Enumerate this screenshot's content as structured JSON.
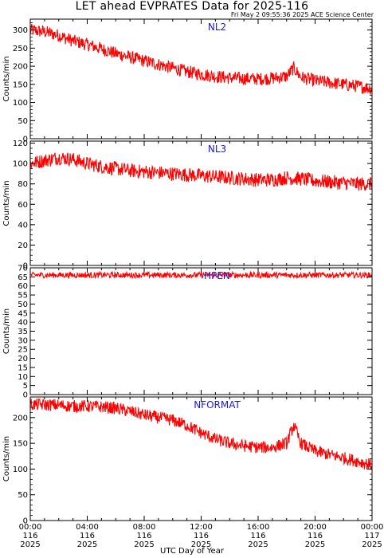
{
  "title": "LET ahead EVPRATES Data for 2025-116",
  "timestamp": "Fri May  2 09:55:36 2025 ACE Science Center",
  "xlabel": "UTC Day of Year",
  "chart_data": [
    {
      "type": "line",
      "name": "NL2",
      "ylabel": "Counts/min",
      "ylim": [
        0,
        330
      ],
      "yticks": [
        0,
        50,
        100,
        150,
        200,
        250,
        300
      ],
      "color": "#ff0000",
      "x_hours": [
        0,
        1,
        2,
        3,
        4,
        5,
        6,
        7,
        8,
        9,
        10,
        11,
        12,
        13,
        14,
        15,
        16,
        17,
        18,
        18.5,
        19,
        20,
        21,
        22,
        23,
        24
      ],
      "values": [
        300,
        295,
        285,
        270,
        260,
        248,
        235,
        225,
        215,
        205,
        195,
        185,
        178,
        172,
        168,
        166,
        165,
        167,
        172,
        195,
        170,
        160,
        155,
        150,
        145,
        138
      ],
      "noise": 18
    },
    {
      "type": "line",
      "name": "NL3",
      "ylabel": "Counts/min",
      "ylim": [
        0,
        122
      ],
      "yticks": [
        0,
        20,
        40,
        60,
        80,
        100,
        120
      ],
      "color": "#ff0000",
      "x_hours": [
        0,
        1,
        2,
        3,
        4,
        5,
        6,
        7,
        8,
        9,
        10,
        11,
        12,
        13,
        14,
        15,
        16,
        17,
        18,
        19,
        20,
        21,
        22,
        23,
        24
      ],
      "values": [
        100,
        103,
        106,
        104,
        100,
        97,
        95,
        93,
        92,
        91,
        90,
        89,
        88,
        87,
        86,
        85,
        84,
        84,
        86,
        85,
        83,
        82,
        81,
        80,
        80
      ],
      "noise": 7
    },
    {
      "type": "line",
      "name": "HPEN",
      "ylabel": "Counts/min",
      "ylim": [
        0,
        70
      ],
      "yticks": [
        0,
        5,
        10,
        15,
        20,
        25,
        30,
        35,
        40,
        45,
        50,
        55,
        60,
        65,
        70
      ],
      "color": "#ff0000",
      "x_hours": [
        0,
        6,
        12,
        18,
        24
      ],
      "values": [
        66,
        66,
        66,
        66,
        66
      ],
      "noise": 1.6
    },
    {
      "type": "line",
      "name": "NFORMAT",
      "ylabel": "Counts/min",
      "ylim": [
        0,
        240
      ],
      "yticks": [
        0,
        50,
        100,
        150,
        200
      ],
      "color": "#ff0000",
      "x_hours": [
        0,
        1,
        2,
        3,
        4,
        5,
        6,
        7,
        8,
        9,
        10,
        11,
        12,
        13,
        14,
        15,
        16,
        17,
        18,
        18.5,
        19,
        20,
        21,
        22,
        23,
        24
      ],
      "values": [
        225,
        225,
        224,
        222,
        222,
        221,
        218,
        212,
        205,
        200,
        195,
        185,
        170,
        158,
        150,
        145,
        142,
        142,
        150,
        185,
        150,
        135,
        128,
        122,
        115,
        108
      ],
      "noise": 12
    }
  ],
  "x_axis": {
    "range_hours": [
      0,
      24
    ],
    "major_ticks": [
      {
        "time": "00:00",
        "doy": "116",
        "year": "2025"
      },
      {
        "time": "04:00",
        "doy": "116",
        "year": "2025"
      },
      {
        "time": "08:00",
        "doy": "116",
        "year": "2025"
      },
      {
        "time": "12:00",
        "doy": "116",
        "year": "2025"
      },
      {
        "time": "16:00",
        "doy": "116",
        "year": "2025"
      },
      {
        "time": "20:00",
        "doy": "116",
        "year": "2025"
      },
      {
        "time": "00:00",
        "doy": "117",
        "year": "2025"
      }
    ]
  }
}
